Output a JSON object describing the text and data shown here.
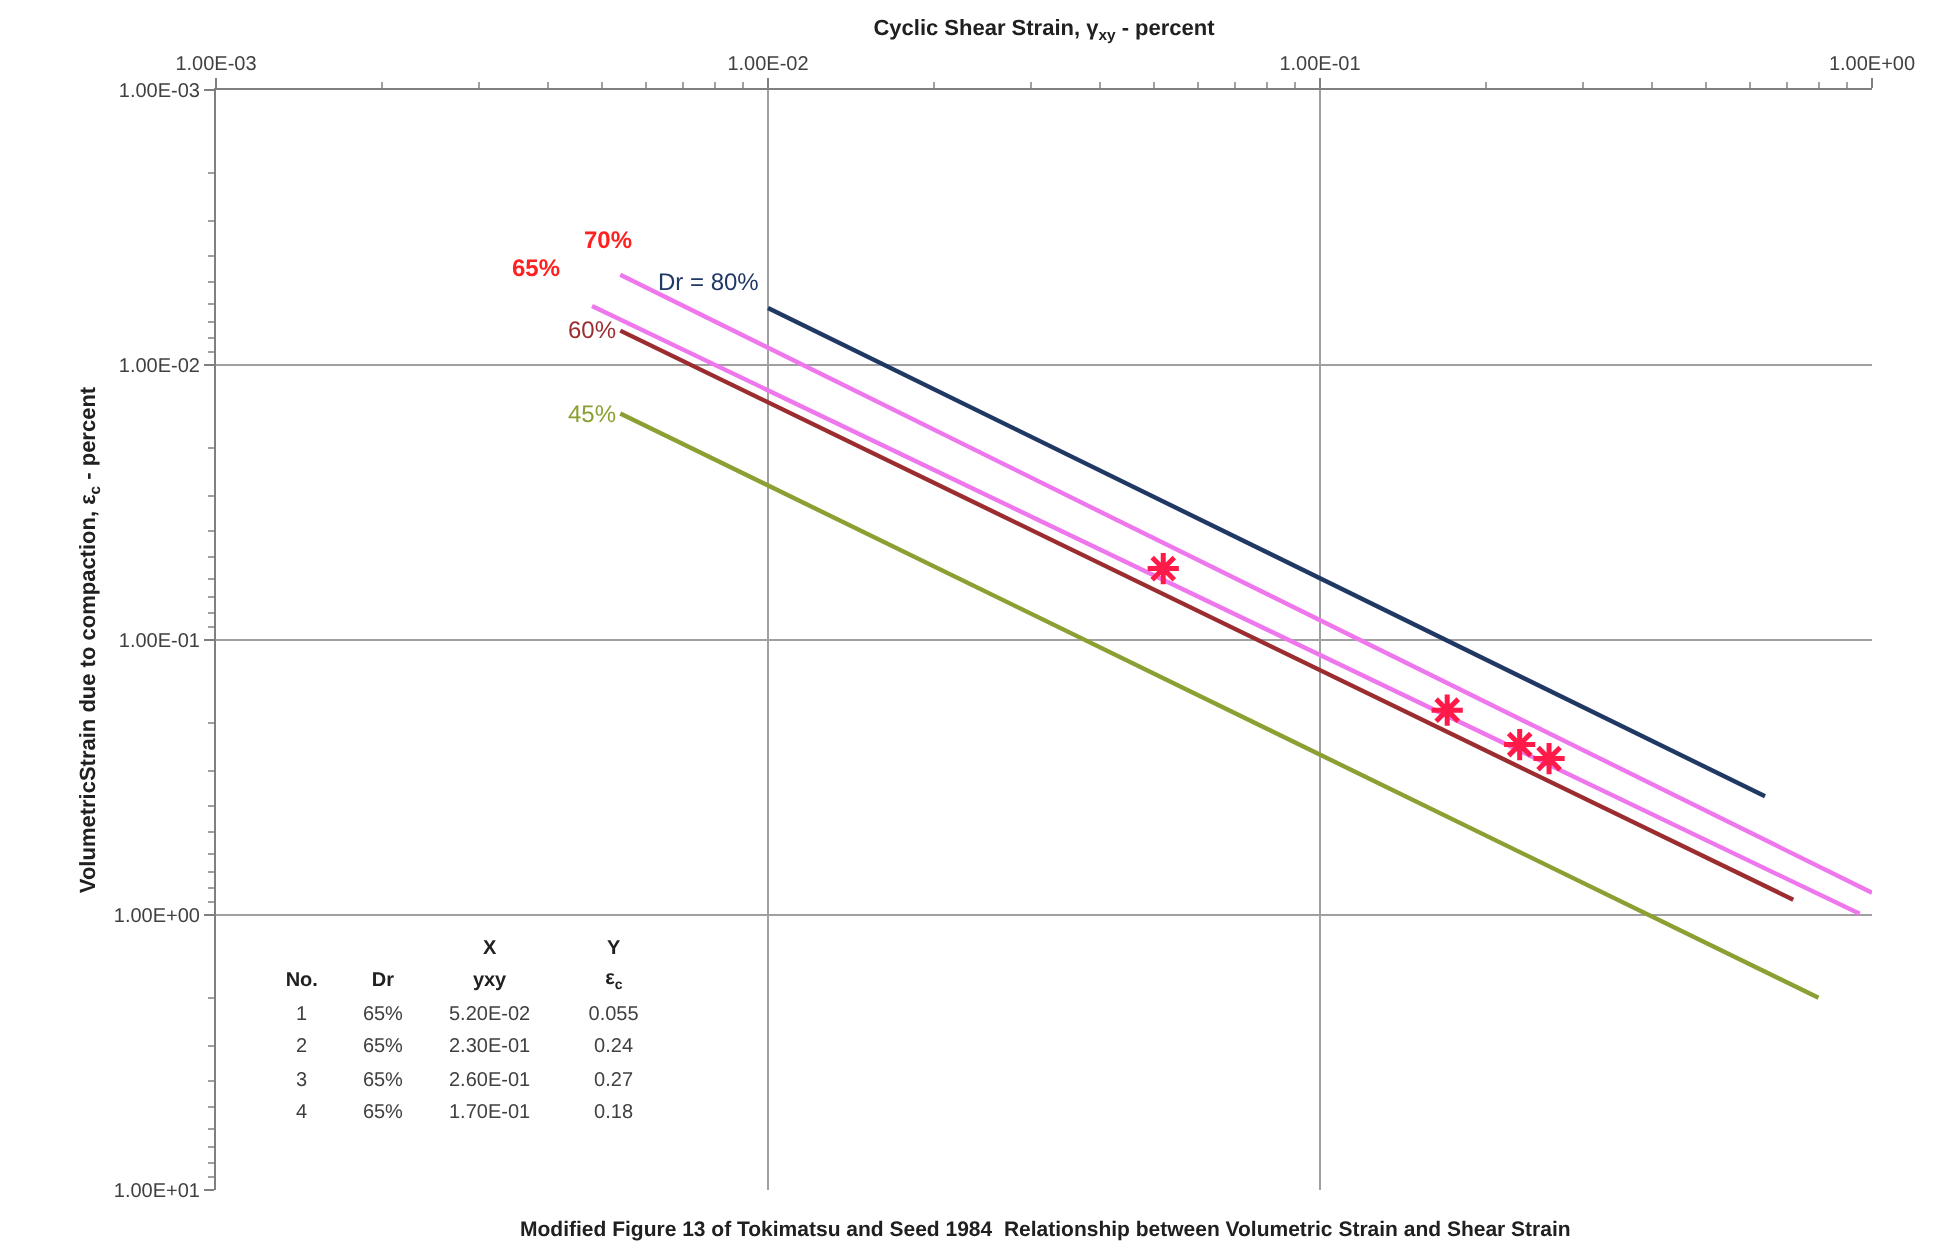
{
  "chart_data": {
    "type": "line",
    "xlabel": "Cyclic Shear Strain, γ$_{xy}$ - percent",
    "ylabel": "VolumetricStrain due to compaction, ε$_{c}$ - percent",
    "annotations": [
      "Modified Figure 13 of Tokimatsu and Seed 1984  Relationship between Volumetric Strain and Shear Strain",
      "X",
      "Y",
      "No.",
      "Dr",
      "yxy",
      "ε$_{c}$",
      "1",
      "65%",
      "5.20E-02",
      "0.055",
      "2",
      "65%",
      "2.30E-01",
      "0.24",
      "3",
      "65%",
      "2.60E-01",
      "0.27",
      "4",
      "65%",
      "1.70E-01",
      "0.18"
    ],
    "log": "xy",
    "grid": true,
    "marker": "none",
    "line_style": "solid",
    "xlim": [
      0.001,
      1
    ],
    "ylim": [
      10,
      0.001
    ],
    "xticks": [
      {
        "value": 0.001,
        "label": "1.00E-03"
      },
      {
        "value": 0.01,
        "label": "1.00E-02"
      },
      {
        "value": 0.1,
        "label": "1.00E-01"
      },
      {
        "value": 1,
        "label": "1.00E+00"
      }
    ],
    "yticks": [
      {
        "value": 0.001,
        "label": "1.00E-03"
      },
      {
        "value": 0.01,
        "label": "1.00E-02"
      },
      {
        "value": 0.1,
        "label": "1.00E-01"
      },
      {
        "value": 1,
        "label": "1.00E+00"
      },
      {
        "value": 10,
        "label": "1.00E+01"
      }
    ],
    "series": [
      {
        "name": "Dr = 80%",
        "color": "#1f3864",
        "x": [
          0.01,
          0.64
        ],
        "values": [
          0.0062,
          0.37
        ]
      },
      {
        "name": "70%",
        "color": "#ee77ee",
        "x": [
          0.0054,
          1.0
        ],
        "values": [
          0.0047,
          0.83
        ]
      },
      {
        "name": "65%",
        "color": "#ee77ee",
        "x": [
          0.0048,
          0.95
        ],
        "values": [
          0.0061,
          0.99
        ]
      },
      {
        "name": "60%",
        "color": "#9b2d30",
        "x": [
          0.0054,
          0.72
        ],
        "values": [
          0.0075,
          0.88
        ]
      },
      {
        "name": "45%",
        "color": "#8aa032",
        "x": [
          0.0054,
          0.8
        ],
        "values": [
          0.015,
          2.0
        ]
      },
      {
        "type": "scatter",
        "marker": "cross",
        "color": "#ff1a4a",
        "x": [
          0.052,
          0.23,
          0.26,
          0.17
        ],
        "values": [
          0.055,
          0.24,
          0.27,
          0.18
        ]
      }
    ]
  }
}
